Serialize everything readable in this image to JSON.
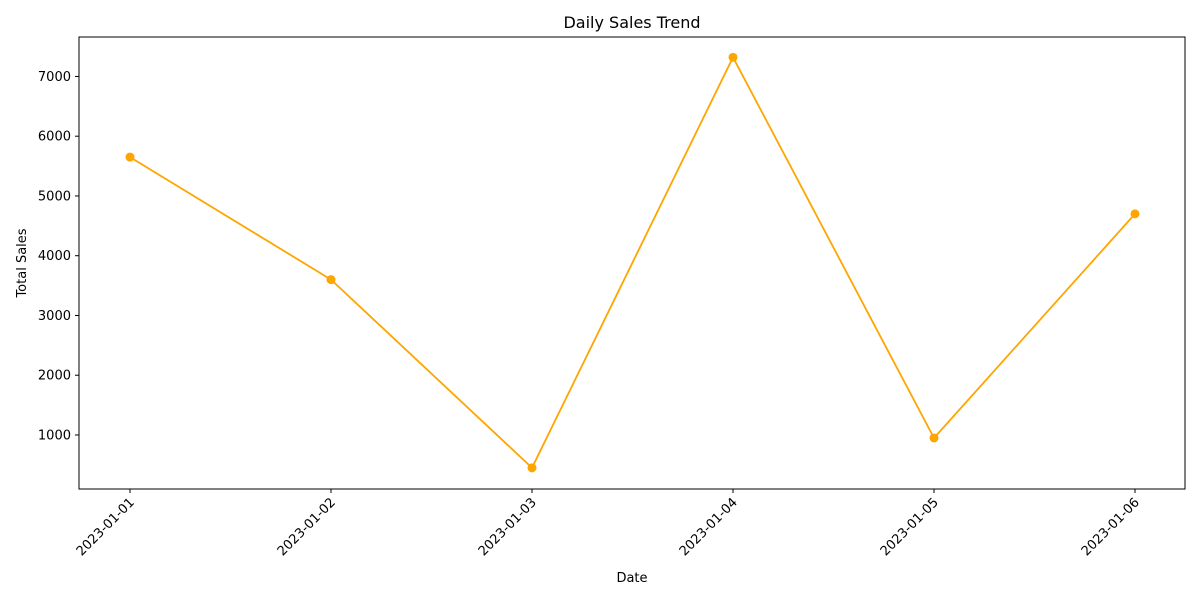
{
  "chart_data": {
    "type": "line",
    "title": "Daily Sales Trend",
    "xlabel": "Date",
    "ylabel": "Total Sales",
    "x": [
      "2023-01-01",
      "2023-01-02",
      "2023-01-03",
      "2023-01-04",
      "2023-01-05",
      "2023-01-06"
    ],
    "series": [
      {
        "values": [
          5650,
          3600,
          450,
          7320,
          950,
          4700
        ],
        "color": "#FFA500"
      }
    ],
    "yticks": [
      1000,
      2000,
      3000,
      4000,
      5000,
      6000,
      7000
    ],
    "ylim": [
      96,
      7660
    ],
    "grid": false,
    "marker": "circle"
  }
}
